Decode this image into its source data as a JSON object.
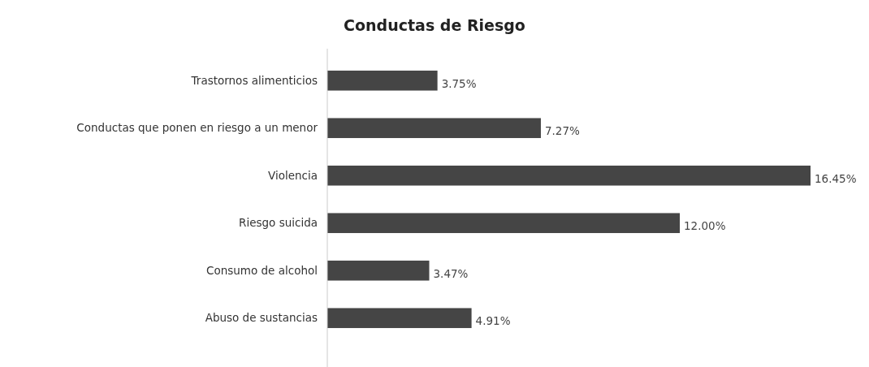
{
  "chart_data": {
    "type": "bar",
    "orientation": "horizontal",
    "title": "Conductas de Riesgo",
    "categories": [
      "Trastornos alimenticios",
      "Conductas que ponen en riesgo a un menor",
      "Violencia",
      "Riesgo suicida",
      "Consumo de alcohol",
      "Abuso de sustancias"
    ],
    "values": [
      3.75,
      7.27,
      16.45,
      12.0,
      3.47,
      4.91
    ],
    "value_labels": [
      "3.75%",
      "7.27%",
      "16.45%",
      "12.00%",
      "3.47%",
      "4.91%"
    ],
    "color": "#454545"
  }
}
